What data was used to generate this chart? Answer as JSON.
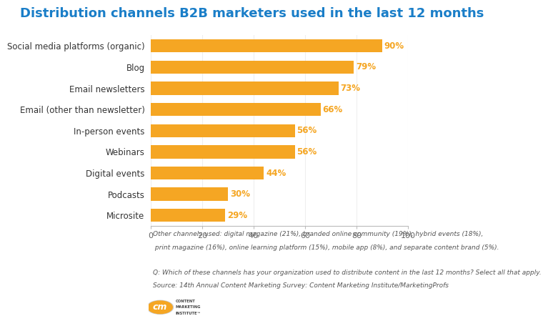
{
  "title": "Distribution channels B2B marketers used in the last 12 months",
  "categories": [
    "Social media platforms (organic)",
    "Blog",
    "Email newsletters",
    "Email (other than newsletter)",
    "In-person events",
    "Webinars",
    "Digital events",
    "Podcasts",
    "Microsite"
  ],
  "values": [
    90,
    79,
    73,
    66,
    56,
    56,
    44,
    30,
    29
  ],
  "bar_color": "#F5A623",
  "title_color": "#1A7EC8",
  "label_color": "#333333",
  "value_color": "#F5A623",
  "background_color": "#FFFFFF",
  "xlim": [
    0,
    100
  ],
  "xticks": [
    0,
    20,
    40,
    60,
    80,
    100
  ],
  "footnote_line1": "Other channels used: digital magazine (21%), branded online community (19%), hybrid events (18%),",
  "footnote_line2": " print magazine (16%), online learning platform (15%), mobile app (8%), and separate content brand (5%).",
  "footnote_line3": "Q: Which of these channels has your organization used to distribute content in the last 12 months? Select all that apply.",
  "footnote_line4": "Source: 14th Annual Content Marketing Survey: Content Marketing Institute/MarketingProfs",
  "title_fontsize": 13,
  "label_fontsize": 8.5,
  "value_fontsize": 8.5,
  "tick_fontsize": 8,
  "footnote_fontsize": 6.5
}
